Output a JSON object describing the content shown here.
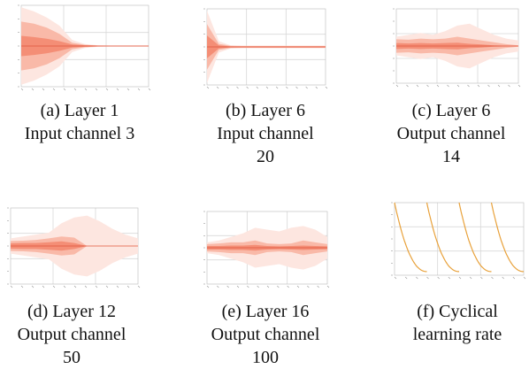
{
  "colors": {
    "band_outer": "#fde6e0",
    "band_mid": "#f9b9a8",
    "band_inner": "#f48e76",
    "median": "#e0553c",
    "lr_line": "#e8a13a",
    "grid": "#d8d8d8",
    "axis": "#bbbbbb"
  },
  "figures": [
    {
      "caption_line1": "(a) Layer 1",
      "caption_line2": "Input channel 3",
      "caption_line3": ""
    },
    {
      "caption_line1": "(b) Layer 6",
      "caption_line2": "Input channel",
      "caption_line3": "20"
    },
    {
      "caption_line1": "(c) Layer 6",
      "caption_line2": "Output channel",
      "caption_line3": "14"
    },
    {
      "caption_line1": "(d) Layer 12",
      "caption_line2": "Output channel",
      "caption_line3": "50"
    },
    {
      "caption_line1": "(e) Layer 16",
      "caption_line2": "Output channel",
      "caption_line3": "100"
    },
    {
      "caption_line1": "(f) Cyclical",
      "caption_line2": "learning rate",
      "caption_line3": ""
    }
  ],
  "chart_data": [
    {
      "type": "area",
      "x": [
        0,
        10,
        20,
        30,
        40,
        50,
        60,
        70,
        80,
        90,
        100
      ],
      "series": [
        {
          "values_outer": [
            0.95,
            0.85,
            0.7,
            0.5,
            0.15,
            0.05,
            0.02,
            0.01,
            0.01,
            0.01,
            0.01
          ]
        },
        {
          "values_mid": [
            0.6,
            0.55,
            0.45,
            0.3,
            0.08,
            0.03,
            0.01,
            0.01,
            0.01,
            0.01,
            0.01
          ]
        },
        {
          "values_inner": [
            0.25,
            0.22,
            0.18,
            0.12,
            0.04,
            0.02,
            0.01,
            0.005,
            0.005,
            0.005,
            0.005
          ]
        }
      ]
    },
    {
      "type": "area",
      "x": [
        0,
        10,
        20,
        30,
        40,
        50,
        60,
        70,
        80,
        90,
        100
      ],
      "series": [
        {
          "values_outer": [
            0.95,
            0.15,
            0.04,
            0.03,
            0.03,
            0.03,
            0.03,
            0.03,
            0.03,
            0.03,
            0.03
          ]
        },
        {
          "values_mid": [
            0.6,
            0.08,
            0.03,
            0.025,
            0.025,
            0.025,
            0.025,
            0.025,
            0.025,
            0.025,
            0.025
          ]
        },
        {
          "values_inner": [
            0.3,
            0.04,
            0.015,
            0.012,
            0.012,
            0.012,
            0.012,
            0.012,
            0.012,
            0.012,
            0.012
          ]
        }
      ]
    },
    {
      "type": "area",
      "x": [
        0,
        10,
        20,
        30,
        40,
        50,
        60,
        70,
        80,
        90,
        100
      ],
      "series": [
        {
          "values_outer": [
            0.25,
            0.3,
            0.35,
            0.3,
            0.4,
            0.55,
            0.6,
            0.45,
            0.3,
            0.2,
            0.15
          ]
        },
        {
          "values_mid": [
            0.18,
            0.17,
            0.2,
            0.18,
            0.2,
            0.25,
            0.2,
            0.15,
            0.1,
            0.05,
            0.02
          ]
        },
        {
          "values_inner": [
            0.08,
            0.07,
            0.08,
            0.07,
            0.08,
            0.09,
            0.06,
            0.04,
            0.02,
            0.01,
            0.0
          ]
        }
      ]
    },
    {
      "type": "area",
      "x": [
        0,
        10,
        20,
        30,
        40,
        50,
        60,
        70,
        80,
        90,
        100
      ],
      "series": [
        {
          "values_outer": [
            0.2,
            0.25,
            0.3,
            0.35,
            0.6,
            0.75,
            0.8,
            0.65,
            0.45,
            0.3,
            0.2
          ]
        },
        {
          "values_mid": [
            0.13,
            0.14,
            0.16,
            0.2,
            0.25,
            0.22,
            0.0,
            0.0,
            0.0,
            0.0,
            0.0
          ]
        },
        {
          "values_inner": [
            0.07,
            0.08,
            0.08,
            0.1,
            0.12,
            0.08,
            0.0,
            0.0,
            0.0,
            0.0,
            0.0
          ]
        }
      ]
    },
    {
      "type": "area",
      "x": [
        0,
        10,
        20,
        30,
        40,
        50,
        60,
        70,
        80,
        90,
        100
      ],
      "series": [
        {
          "values_outer": [
            0.15,
            0.2,
            0.3,
            0.4,
            0.55,
            0.5,
            0.45,
            0.55,
            0.6,
            0.5,
            0.3
          ]
        },
        {
          "values_mid": [
            0.1,
            0.12,
            0.15,
            0.15,
            0.2,
            0.12,
            0.1,
            0.12,
            0.2,
            0.15,
            0.1
          ]
        },
        {
          "values_inner": [
            0.05,
            0.05,
            0.06,
            0.06,
            0.08,
            0.05,
            0.04,
            0.05,
            0.06,
            0.05,
            0.04
          ]
        }
      ]
    },
    {
      "type": "line",
      "ylim": [
        0,
        1
      ],
      "cycles": [
        {
          "x_start": 0,
          "x_end": 50,
          "y_start": 1.0,
          "y_end": 0.05
        },
        {
          "x_start": 50,
          "x_end": 100,
          "y_start": 1.0,
          "y_end": 0.05
        },
        {
          "x_start": 100,
          "x_end": 150,
          "y_start": 1.0,
          "y_end": 0.05
        },
        {
          "x_start": 150,
          "x_end": 200,
          "y_start": 1.0,
          "y_end": 0.05
        }
      ]
    }
  ]
}
